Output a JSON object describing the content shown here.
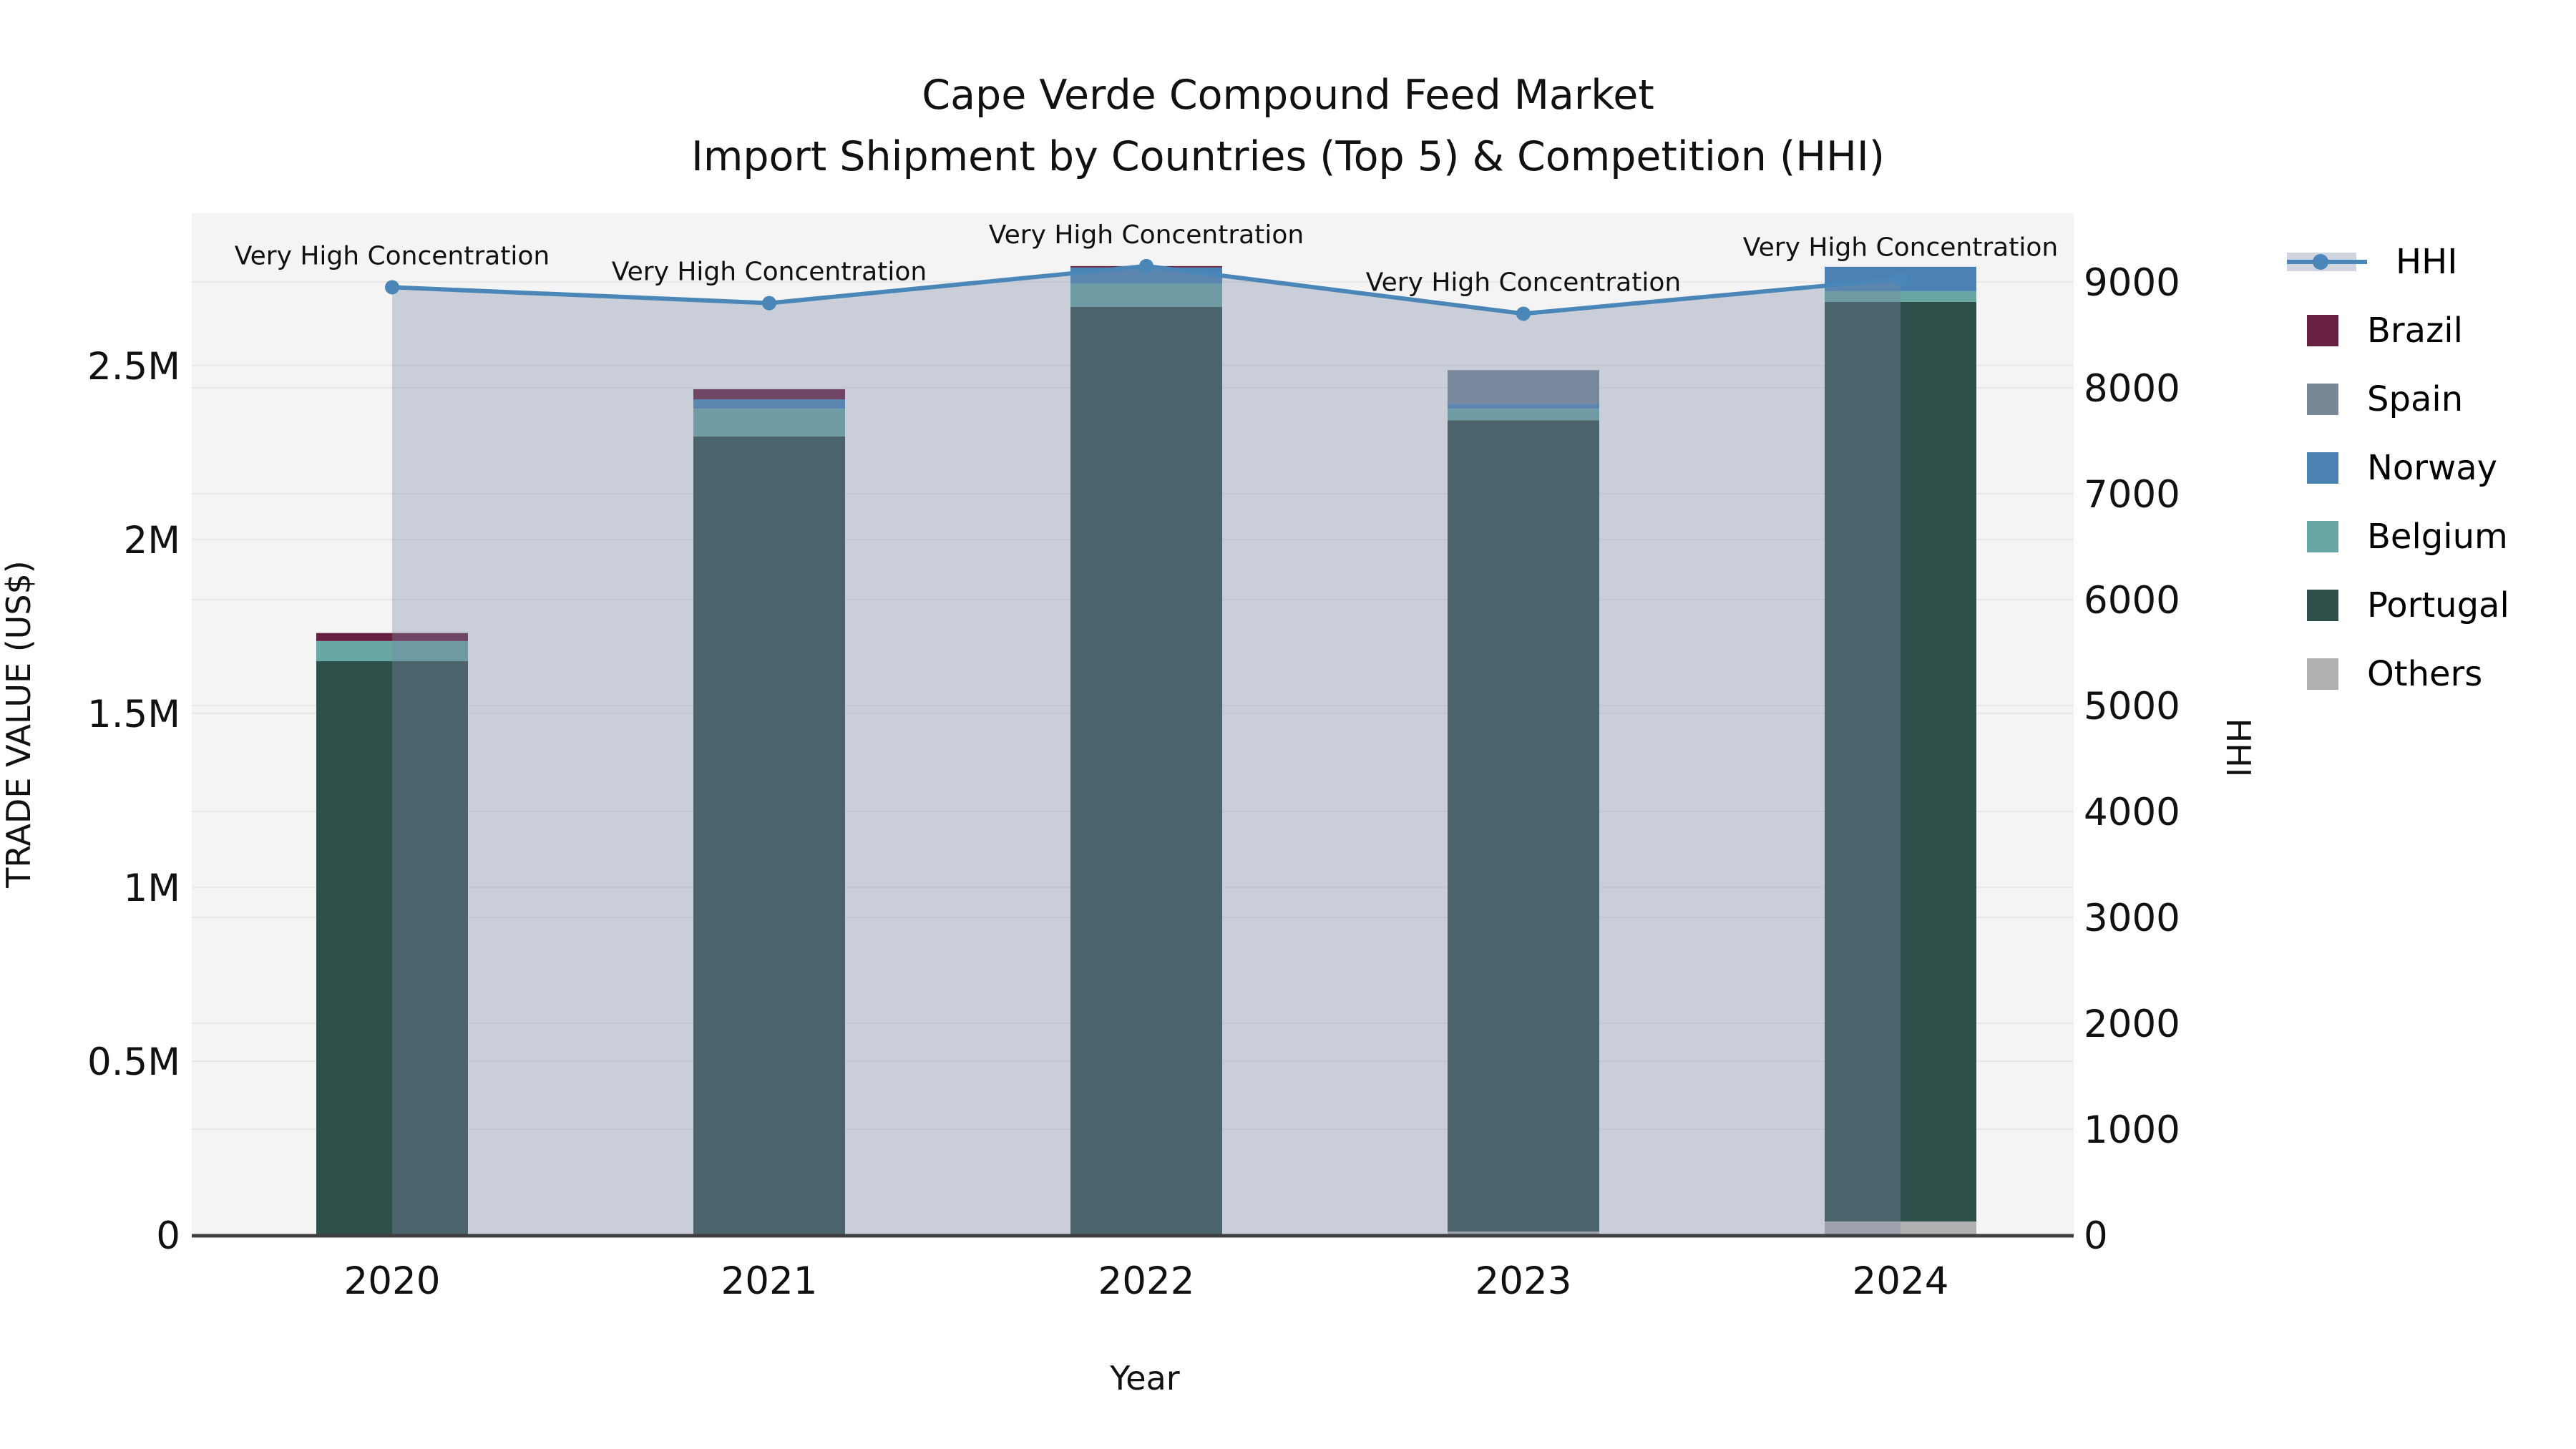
{
  "chart_data": {
    "type": "bar",
    "title_line1": "Cape Verde Compound Feed Market",
    "title_line2": "Import Shipment by Countries (Top 5) & Competition (HHI)",
    "x_label": "Year",
    "y_left_label": "TRADE VALUE (US$)",
    "y_right_label": "HHI",
    "categories": [
      "2020",
      "2021",
      "2022",
      "2023",
      "2024"
    ],
    "y_left_ticks": [
      {
        "label": "0",
        "value": 0
      },
      {
        "label": "0.5M",
        "value": 500000
      },
      {
        "label": "1M",
        "value": 1000000
      },
      {
        "label": "1.5M",
        "value": 1500000
      },
      {
        "label": "2M",
        "value": 2000000
      },
      {
        "label": "2.5M",
        "value": 2500000
      }
    ],
    "y_right_ticks": [
      {
        "label": "0",
        "value": 0
      },
      {
        "label": "1000",
        "value": 1000
      },
      {
        "label": "2000",
        "value": 2000
      },
      {
        "label": "3000",
        "value": 3000
      },
      {
        "label": "4000",
        "value": 4000
      },
      {
        "label": "5000",
        "value": 5000
      },
      {
        "label": "6000",
        "value": 6000
      },
      {
        "label": "7000",
        "value": 7000
      },
      {
        "label": "8000",
        "value": 8000
      },
      {
        "label": "9000",
        "value": 9000
      }
    ],
    "y_left_range": [
      0,
      2938000
    ],
    "y_right_range": [
      0,
      9649
    ],
    "grid": true,
    "legend_position": "right",
    "series": [
      {
        "name": "Others",
        "color": "#b0b0b2",
        "values": [
          0,
          0,
          0,
          10000,
          39000
        ]
      },
      {
        "name": "Portugal",
        "color": "#2f4f4a",
        "values": [
          1650000,
          2296000,
          2669000,
          2333000,
          2644000
        ]
      },
      {
        "name": "Belgium",
        "color": "#68a7a3",
        "values": [
          58000,
          80000,
          66000,
          33000,
          31000
        ]
      },
      {
        "name": "Norway",
        "color": "#4a82b4",
        "values": [
          0,
          27000,
          47000,
          14000,
          70000
        ]
      },
      {
        "name": "Spain",
        "color": "#788796",
        "values": [
          0,
          0,
          0,
          97000,
          0
        ]
      },
      {
        "name": "Brazil",
        "color": "#67203f",
        "values": [
          23000,
          29000,
          4000,
          0,
          0
        ]
      }
    ],
    "line_series": {
      "name": "HHI",
      "color": "#4a86b8",
      "area_color": "rgba(124,138,165,0.36)",
      "values": [
        8950,
        8800,
        9150,
        8700,
        9030
      ]
    },
    "annotations": [
      {
        "year": "2020",
        "text": "Very High Concentration"
      },
      {
        "year": "2021",
        "text": "Very High Concentration"
      },
      {
        "year": "2022",
        "text": "Very High Concentration"
      },
      {
        "year": "2023",
        "text": "Very High Concentration"
      },
      {
        "year": "2024",
        "text": "Very High Concentration"
      }
    ]
  },
  "legend": {
    "items": [
      {
        "label": "HHI",
        "type": "line",
        "color": "#4a86b8"
      },
      {
        "label": "Brazil",
        "type": "patch",
        "color": "#67203f"
      },
      {
        "label": "Spain",
        "type": "patch",
        "color": "#788796"
      },
      {
        "label": "Norway",
        "type": "patch",
        "color": "#4a82b4"
      },
      {
        "label": "Belgium",
        "type": "patch",
        "color": "#68a7a3"
      },
      {
        "label": "Portugal",
        "type": "patch",
        "color": "#2f4f4a"
      },
      {
        "label": "Others",
        "type": "patch",
        "color": "#b0b0b2"
      }
    ]
  }
}
